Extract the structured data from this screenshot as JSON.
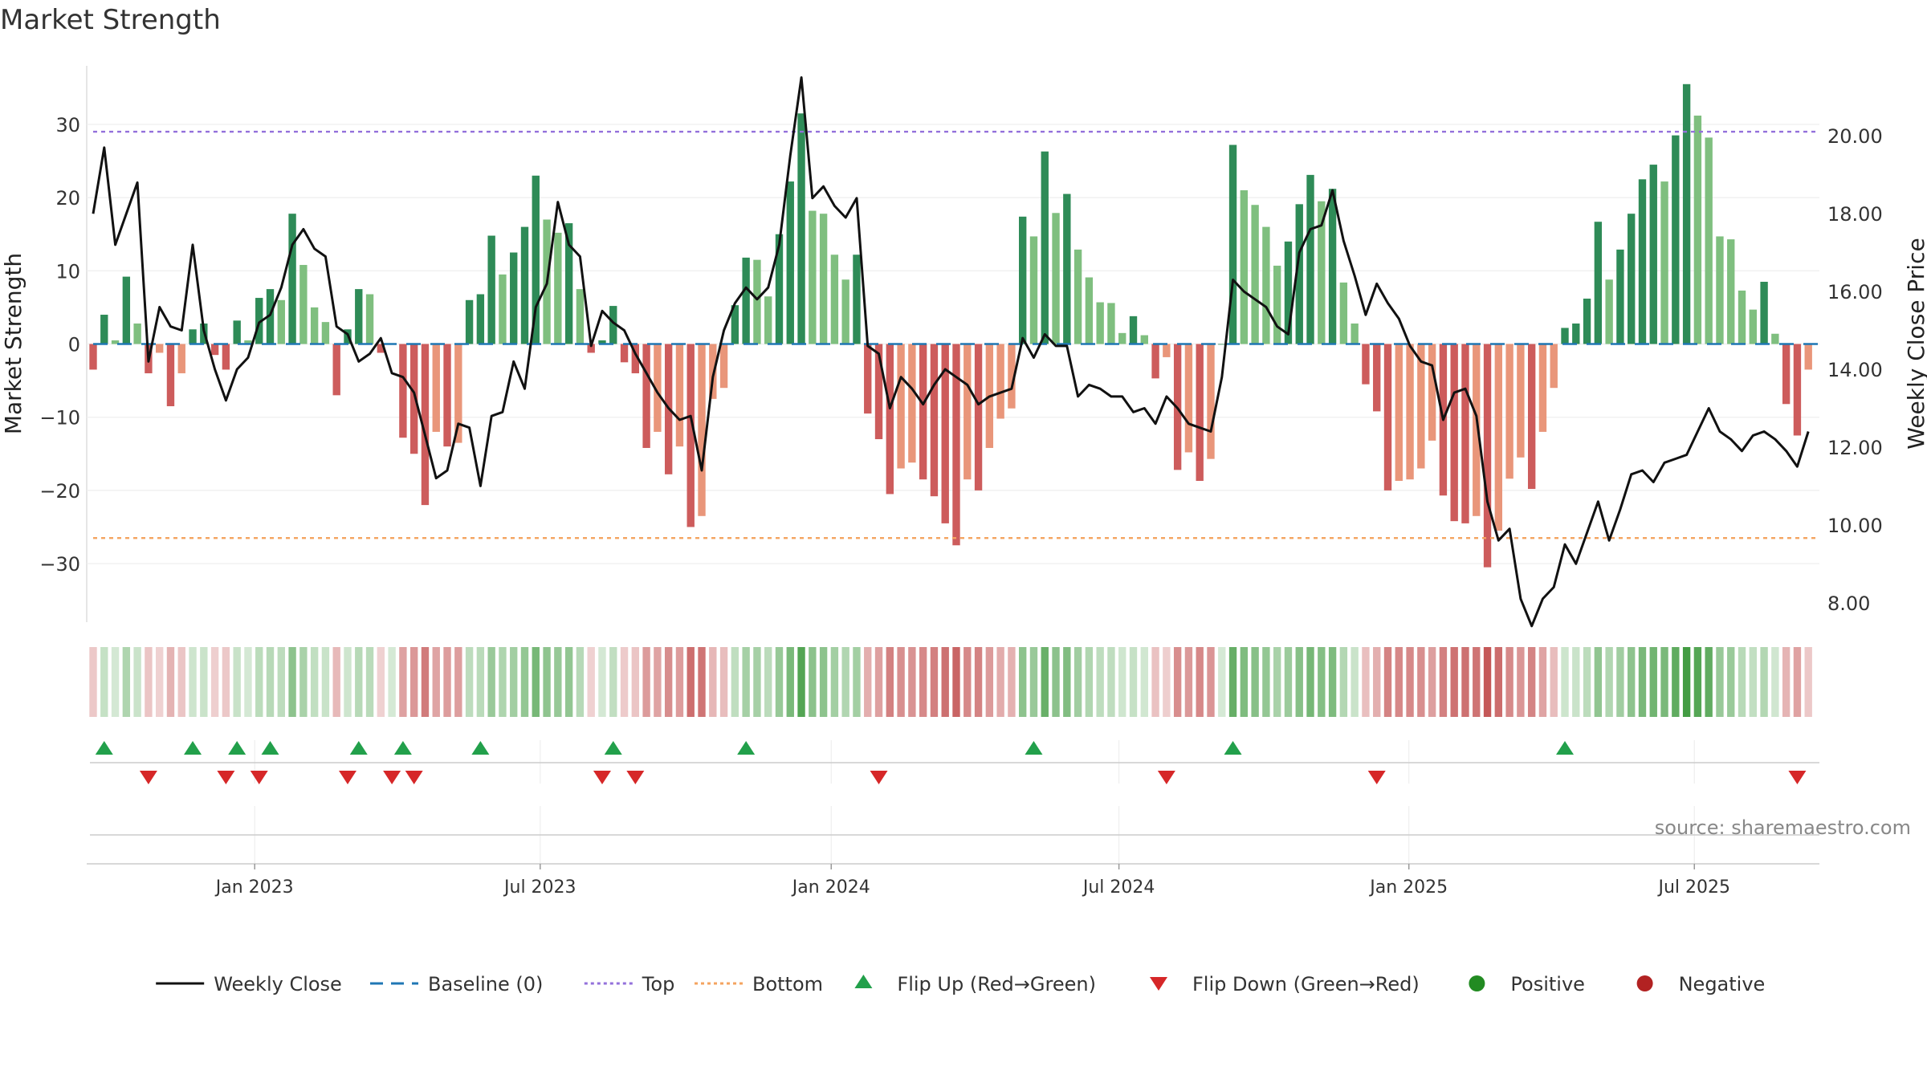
{
  "chart_data": {
    "type": "bar",
    "title": "Market Strength",
    "ylabel_left": "Market Strength",
    "ylabel_right": "Weekly Close Price",
    "ylim_left": [
      -38,
      38
    ],
    "ylim_right": [
      7.5,
      21.8
    ],
    "yticks_left": [
      30,
      20,
      10,
      0,
      -10,
      -20,
      -30
    ],
    "ytick_labels_left": [
      "30",
      "20",
      "10",
      "0",
      "−10",
      "−20",
      "−30"
    ],
    "yticks_right": [
      20,
      18,
      16,
      14,
      12,
      10,
      8
    ],
    "ytick_labels_right": [
      "20.00",
      "18.00",
      "16.00",
      "14.00",
      "12.00",
      "10.00",
      "8.00"
    ],
    "x_range_weeks": [
      0,
      156
    ],
    "x_ticks": [
      {
        "label": "Jan 2023",
        "week": 14.6
      },
      {
        "label": "Jul 2023",
        "week": 40.4
      },
      {
        "label": "Jan 2024",
        "week": 66.7
      },
      {
        "label": "Jul 2024",
        "week": 92.7
      },
      {
        "label": "Jan 2025",
        "week": 118.9
      },
      {
        "label": "Jul 2025",
        "week": 144.7
      }
    ],
    "top_threshold": 29,
    "bottom_threshold": -26.5,
    "baseline": 0,
    "strength": [
      -3.5,
      4,
      0.5,
      9.2,
      2.8,
      -4,
      -1.2,
      -8.5,
      -4,
      2,
      2.8,
      -1.5,
      -3.5,
      3.2,
      0.5,
      6.3,
      7.5,
      6,
      17.8,
      10.8,
      5,
      3,
      -7,
      2,
      7.5,
      6.8,
      -1.2,
      0,
      -12.8,
      -15,
      -22,
      -12,
      -14,
      -13.5,
      6,
      6.8,
      14.8,
      9.5,
      12.5,
      16,
      23,
      17,
      15.2,
      16.5,
      7.5,
      -1.2,
      0.5,
      5.2,
      -2.5,
      -4,
      -14.2,
      -12,
      -17.8,
      -14,
      -25,
      -23.5,
      -7.5,
      -6,
      5.3,
      11.8,
      11.5,
      6.5,
      15,
      22.2,
      31.5,
      18.2,
      17.8,
      12.2,
      8.8,
      12.2,
      -9.5,
      -13,
      -20.5,
      -17,
      -16.2,
      -18.5,
      -20.8,
      -24.5,
      -27.5,
      -18.5,
      -20,
      -14.2,
      -10.2,
      -8.8,
      17.4,
      14.7,
      26.3,
      17.9,
      20.5,
      12.9,
      9.1,
      5.7,
      5.6,
      1.5,
      3.8,
      1.2,
      -4.7,
      -1.8,
      -17.2,
      -14.8,
      -18.7,
      -15.7,
      0,
      27.2,
      21,
      19,
      16,
      10.7,
      14,
      19.1,
      23.1,
      19.5,
      21.2,
      8.4,
      2.8,
      -5.5,
      -9.2,
      -20,
      -18.7,
      -18.5,
      -17,
      -13.2,
      -20.7,
      -24.2,
      -24.5,
      -23.5,
      -30.5,
      -25.5,
      -18.4,
      -15.5,
      -19.8,
      -12,
      -6,
      2.2,
      2.8,
      6.2,
      16.7,
      8.8,
      12.9,
      17.8,
      22.5,
      24.5,
      22.2,
      28.5,
      35.5,
      31.2,
      28.2,
      14.7,
      14.3,
      7.3,
      4.7,
      8.5,
      1.4,
      -8.2,
      -12.5,
      -3.5
    ],
    "close": [
      18.0,
      19.7,
      17.2,
      18.0,
      18.8,
      14.2,
      15.6,
      15.1,
      15.0,
      17.2,
      15.0,
      14.0,
      13.2,
      14.0,
      14.3,
      15.2,
      15.4,
      16.1,
      17.2,
      17.6,
      17.1,
      16.9,
      15.1,
      14.9,
      14.2,
      14.4,
      14.8,
      13.9,
      13.8,
      13.4,
      12.3,
      11.2,
      11.4,
      12.6,
      12.5,
      11.0,
      12.8,
      12.9,
      14.2,
      13.5,
      15.6,
      16.2,
      18.3,
      17.2,
      16.9,
      14.6,
      15.5,
      15.2,
      15.0,
      14.4,
      13.9,
      13.4,
      13.0,
      12.7,
      12.8,
      11.4,
      13.8,
      15.0,
      15.7,
      16.1,
      15.8,
      16.1,
      17.2,
      19.5,
      21.5,
      18.4,
      18.7,
      18.2,
      17.9,
      18.4,
      14.6,
      14.4,
      13.0,
      13.8,
      13.5,
      13.1,
      13.6,
      14.0,
      13.8,
      13.6,
      13.1,
      13.3,
      13.4,
      13.5,
      14.8,
      14.3,
      14.9,
      14.6,
      14.6,
      13.3,
      13.6,
      13.5,
      13.3,
      13.3,
      12.9,
      13.0,
      12.6,
      13.3,
      13.0,
      12.6,
      12.5,
      12.4,
      13.8,
      16.3,
      16.0,
      15.8,
      15.6,
      15.1,
      14.9,
      17.0,
      17.6,
      17.7,
      18.6,
      17.3,
      16.4,
      15.4,
      16.2,
      15.7,
      15.3,
      14.6,
      14.2,
      14.1,
      12.7,
      13.4,
      13.5,
      12.8,
      10.6,
      9.6,
      9.9,
      8.1,
      7.4,
      8.1,
      8.4,
      9.5,
      9.0,
      9.8,
      10.6,
      9.6,
      10.4,
      11.3,
      11.4,
      11.1,
      11.6,
      11.7,
      11.8,
      12.4,
      13.0,
      12.4,
      12.2,
      11.9,
      12.3,
      12.4,
      12.2,
      11.9,
      11.5,
      12.4
    ],
    "flip_up_weeks": [
      1,
      9,
      13,
      16,
      24,
      28,
      35,
      47,
      59,
      85,
      103,
      133
    ],
    "flip_down_weeks": [
      5,
      12,
      15,
      23,
      27,
      29,
      46,
      49,
      71,
      97,
      116,
      154
    ],
    "legend": [
      "Weekly Close",
      "Baseline (0)",
      "Top",
      "Bottom",
      "Flip Up (Red→Green)",
      "Flip Down (Green→Red)",
      "Positive",
      "Negative"
    ],
    "legend_placement": "bottom-center",
    "source_text": "source: sharemaestro.com",
    "colors": {
      "pos_dark": "#2e8b57",
      "pos_light": "#7fbf7f",
      "neg_dark": "#cd5c5c",
      "neg_light": "#e9967a",
      "line": "#111111",
      "baseline": "#1f77b4",
      "top": "#9370db",
      "bottom": "#f4a460",
      "flip_up": "#22a04b",
      "flip_down": "#d62728",
      "positive_dot": "#228b22",
      "negative_dot": "#b22222"
    }
  }
}
